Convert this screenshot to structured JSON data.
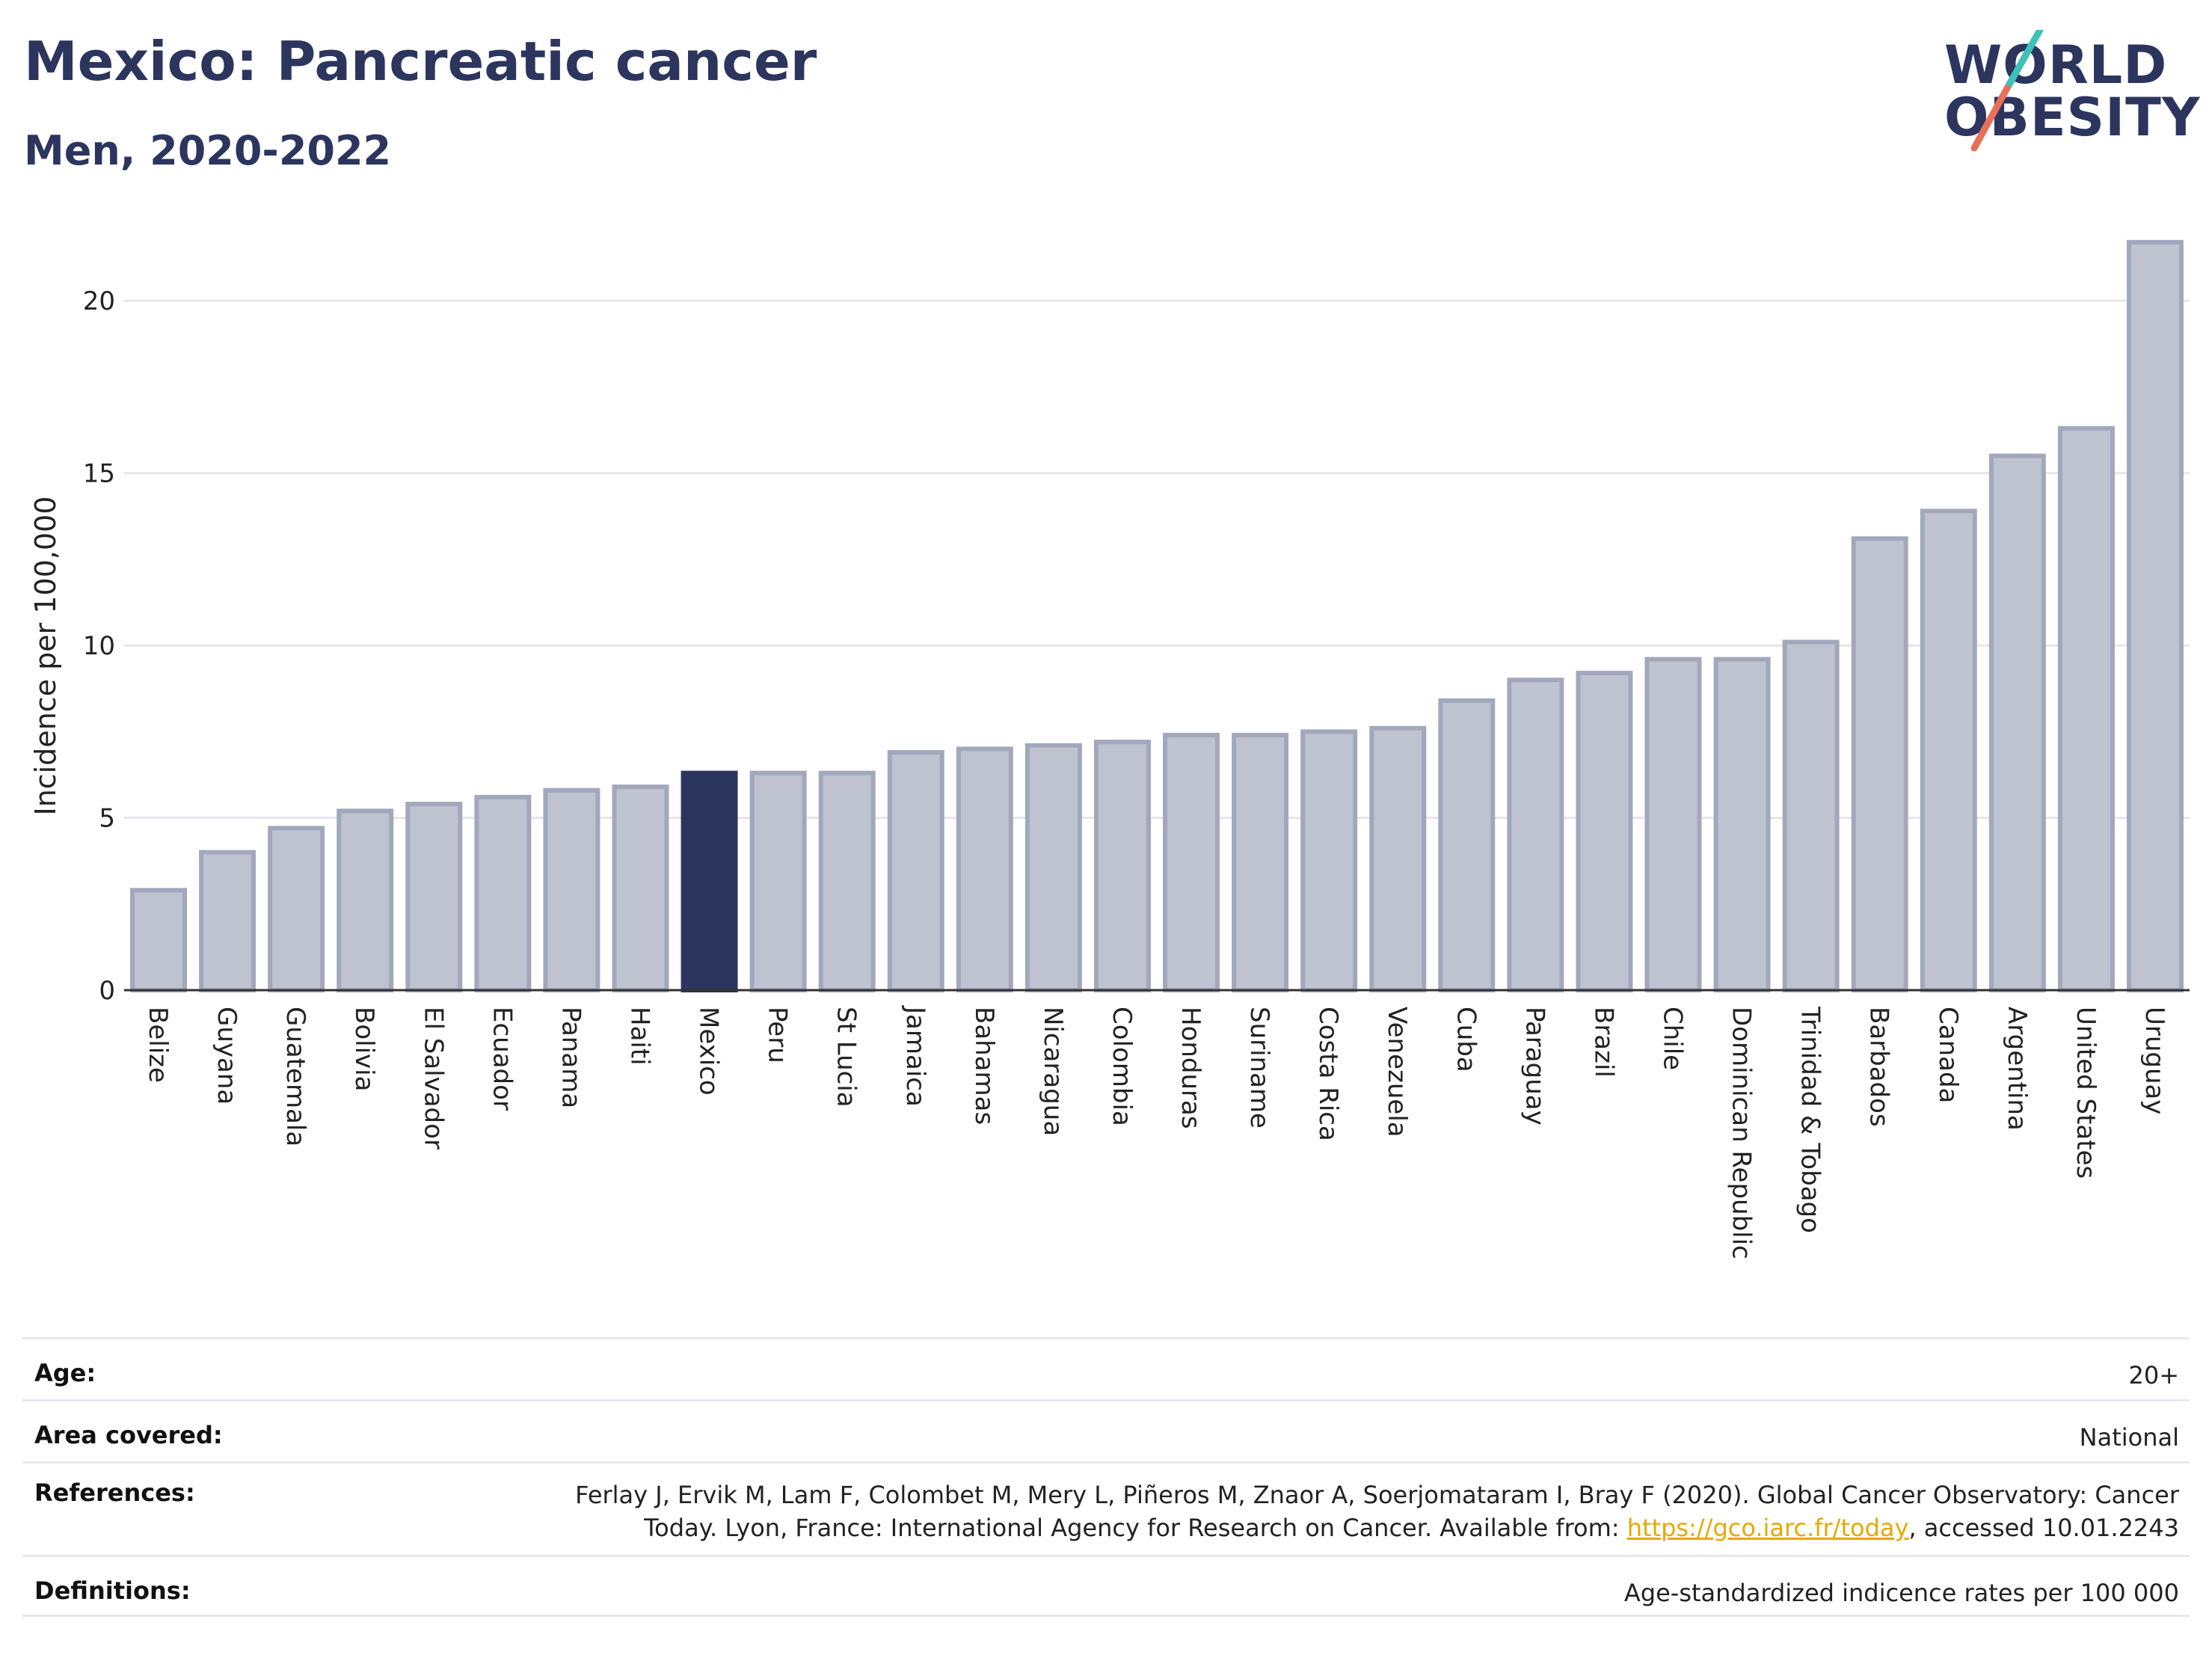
{
  "header": {
    "title": "Mexico: Pancreatic cancer",
    "subtitle": "Men, 2020-2022"
  },
  "logo": {
    "line1": "WORLD",
    "line2": "OBESITY",
    "slash_colors": [
      "#3ec1b8",
      "#e8705a"
    ]
  },
  "chart_data": {
    "type": "bar",
    "ylabel": "Incidence per 100,000",
    "xlabel": "",
    "ylim": [
      0,
      22
    ],
    "yticks": [
      0,
      5,
      10,
      15,
      20
    ],
    "grid": true,
    "highlight": "Mexico",
    "colors": {
      "bar": "#bfc3cf",
      "bar_border": "#a2a8bc",
      "highlight": "#2b355e"
    },
    "categories": [
      "Belize",
      "Guyana",
      "Guatemala",
      "Bolivia",
      "El Salvador",
      "Ecuador",
      "Panama",
      "Haiti",
      "Mexico",
      "Peru",
      "St Lucia",
      "Jamaica",
      "Bahamas",
      "Nicaragua",
      "Colombia",
      "Honduras",
      "Suriname",
      "Costa Rica",
      "Venezuela",
      "Cuba",
      "Paraguay",
      "Brazil",
      "Chile",
      "Dominican Republic",
      "Trinidad & Tobago",
      "Barbados",
      "Canada",
      "Argentina",
      "United States",
      "Uruguay"
    ],
    "values": [
      2.9,
      4.0,
      4.7,
      5.2,
      5.4,
      5.6,
      5.8,
      5.9,
      6.3,
      6.3,
      6.3,
      6.9,
      7.0,
      7.1,
      7.2,
      7.4,
      7.4,
      7.5,
      7.6,
      8.4,
      9.0,
      9.2,
      9.6,
      9.6,
      10.1,
      13.1,
      13.9,
      15.5,
      16.3,
      21.7
    ]
  },
  "meta": {
    "age": {
      "label": "Age:",
      "value": "20+"
    },
    "area": {
      "label": "Area covered:",
      "value": "National"
    },
    "references": {
      "label": "References:",
      "line1": "Ferlay J, Ervik M, Lam F, Colombet M, Mery L, Piñeros M, Znaor A, Soerjomataram I, Bray F (2020). Global Cancer Observatory: Cancer",
      "line2_pre": "Today. Lyon, France: International Agency for Research on Cancer. Available from: ",
      "link": "https://gco.iarc.fr/today",
      "line2_post": ", accessed 10.01.2243"
    },
    "definitions": {
      "label": "Definitions:",
      "value": "Age-standardized indicence rates per 100 000"
    }
  }
}
